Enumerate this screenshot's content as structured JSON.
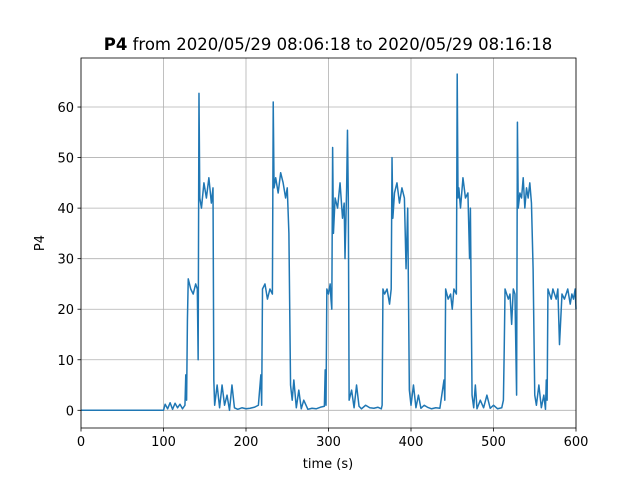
{
  "chart_data": {
    "type": "line",
    "title_series": "P4",
    "title": "from 2020/05/29 08:06:18 to 2020/05/29 08:16:18",
    "xlabel": "time (s)",
    "ylabel": "P4",
    "xlim": [
      0,
      600
    ],
    "xticks": [
      0,
      100,
      200,
      300,
      400,
      500,
      600
    ],
    "ylim": [
      -3.5,
      69.7
    ],
    "yticks": [
      0,
      10,
      20,
      30,
      40,
      50,
      60
    ],
    "grid": true,
    "x": [
      0,
      100,
      102,
      105,
      108,
      111,
      114,
      117,
      120,
      123,
      126,
      127,
      128,
      129,
      130,
      133,
      136,
      139,
      141,
      142,
      143,
      144,
      146,
      149,
      152,
      155,
      158,
      160,
      161,
      162,
      165,
      168,
      171,
      174,
      177,
      180,
      183,
      186,
      190,
      195,
      200,
      205,
      210,
      215,
      218,
      219,
      220,
      223,
      226,
      229,
      232,
      233,
      234,
      236,
      239,
      242,
      245,
      248,
      250,
      252,
      254,
      256,
      258,
      261,
      264,
      267,
      270,
      275,
      280,
      285,
      290,
      295,
      296,
      297,
      298,
      300,
      302,
      303,
      304,
      305,
      306,
      308,
      311,
      314,
      317,
      319,
      320,
      322,
      323,
      324,
      325,
      328,
      331,
      334,
      337,
      340,
      345,
      350,
      355,
      360,
      364,
      365,
      366,
      368,
      371,
      374,
      376,
      377,
      378,
      380,
      383,
      386,
      389,
      392,
      394,
      396,
      398,
      400,
      403,
      406,
      409,
      412,
      416,
      420,
      425,
      430,
      435,
      440,
      441,
      442,
      445,
      448,
      450,
      452,
      455,
      456,
      457,
      458,
      460,
      463,
      466,
      469,
      471,
      472,
      474,
      476,
      478,
      480,
      484,
      488,
      492,
      496,
      500,
      505,
      510,
      512,
      513,
      514,
      516,
      518,
      520,
      522,
      524,
      526,
      528,
      529,
      530,
      532,
      534,
      536,
      538,
      540,
      542,
      544,
      546,
      548,
      550,
      552,
      555,
      558,
      561,
      563,
      564,
      565,
      566,
      568,
      570,
      572,
      574,
      576,
      578,
      580,
      583,
      586,
      590,
      593,
      595,
      597,
      599,
      600
    ],
    "series": [
      {
        "name": "P4",
        "color": "#1f77b4",
        "values": [
          0,
          0,
          1.2,
          0.3,
          1.5,
          0.2,
          1.4,
          0.5,
          1.2,
          0.3,
          1.0,
          7,
          2,
          18,
          26,
          24,
          23,
          25,
          24,
          10,
          62.7,
          42,
          40,
          45,
          42,
          46,
          41,
          44,
          6,
          1,
          5,
          0.5,
          5,
          1,
          3,
          0,
          5,
          0.5,
          0.2,
          0.5,
          0.3,
          0.4,
          0.6,
          1,
          7,
          1,
          24,
          25,
          22,
          24,
          23,
          61,
          44,
          46,
          43,
          47,
          45,
          42,
          44,
          35,
          5,
          2,
          6,
          0.5,
          4,
          0.3,
          2,
          0.2,
          0.4,
          0.3,
          0.6,
          0.8,
          8,
          1,
          24,
          23,
          25,
          22,
          20,
          52,
          35,
          42,
          40,
          45,
          38,
          41,
          30,
          44,
          55.4,
          42,
          2,
          4,
          0.5,
          5,
          0.8,
          0.3,
          1,
          0.5,
          0.4,
          0.6,
          0.3,
          1,
          24,
          23,
          24,
          21,
          24,
          50,
          38,
          43,
          45,
          41,
          44,
          42,
          28,
          40,
          4,
          1,
          5,
          0.5,
          3,
          0.4,
          1,
          0.6,
          0.3,
          0.5,
          0.4,
          6,
          2,
          24,
          22,
          23,
          20,
          24,
          23,
          66.5,
          42,
          44,
          40,
          46,
          42,
          43,
          30,
          40,
          3,
          0.5,
          5,
          0.3,
          2,
          0.5,
          3,
          0.4,
          1,
          0.3,
          0.5,
          2,
          12,
          24,
          23,
          22,
          23,
          17,
          24,
          23,
          3,
          57,
          40,
          43,
          42,
          46,
          40,
          44,
          42,
          45,
          41,
          28,
          3,
          1,
          5,
          0.5,
          3,
          0.2,
          6,
          2,
          24,
          23,
          22,
          24,
          23,
          22,
          24,
          13,
          23,
          22,
          24,
          21,
          23,
          22,
          24,
          20
        ]
      }
    ]
  }
}
